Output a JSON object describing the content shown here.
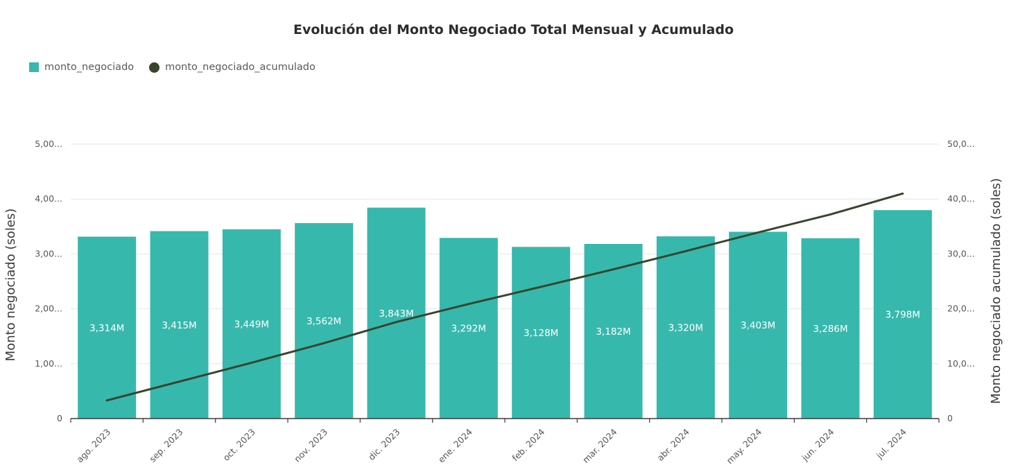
{
  "chart_data": {
    "type": "bar",
    "title": "Evolución del Monto Negociado Total Mensual y Acumulado",
    "categories": [
      "ago. 2023",
      "sep. 2023",
      "oct. 2023",
      "nov. 2023",
      "dic. 2023",
      "ene. 2024",
      "feb. 2024",
      "mar. 2024",
      "abr. 2024",
      "may. 2024",
      "jun. 2024",
      "jul. 2024"
    ],
    "series": [
      {
        "name": "monto_negociado",
        "type": "bar",
        "axis": "left",
        "color": "#37b8ac",
        "values": [
          3314000000,
          3415000000,
          3449000000,
          3562000000,
          3843000000,
          3292000000,
          3128000000,
          3182000000,
          3320000000,
          3403000000,
          3286000000,
          3798000000
        ],
        "labels": [
          "3,314M",
          "3,415M",
          "3,449M",
          "3,562M",
          "3,843M",
          "3,292M",
          "3,128M",
          "3,182M",
          "3,320M",
          "3,403M",
          "3,286M",
          "3,798M"
        ]
      },
      {
        "name": "monto_negociado_acumulado",
        "type": "line",
        "axis": "right",
        "color": "#36452c",
        "values": [
          3314000000,
          6729000000,
          10178000000,
          13740000000,
          17583000000,
          20875000000,
          24003000000,
          27185000000,
          30505000000,
          33908000000,
          37194000000,
          40992000000
        ]
      }
    ],
    "ylabel": "Monto negociado (soles)",
    "y2label": "Monto negociado acumulado (soles)",
    "ylim": [
      0,
      5000000000
    ],
    "y2lim": [
      0,
      50000000000
    ],
    "yticks": [
      0,
      1000000000,
      2000000000,
      3000000000,
      4000000000,
      5000000000
    ],
    "ytick_labels": [
      "0",
      "1,00...",
      "2,00...",
      "3,00...",
      "4,00...",
      "5,00..."
    ],
    "y2ticks": [
      0,
      10000000000,
      20000000000,
      30000000000,
      40000000000,
      50000000000
    ],
    "y2tick_labels": [
      "0",
      "10,0...",
      "20,0...",
      "30,0...",
      "40,0...",
      "50,0..."
    ],
    "grid": true,
    "legend_position": "top-left"
  }
}
